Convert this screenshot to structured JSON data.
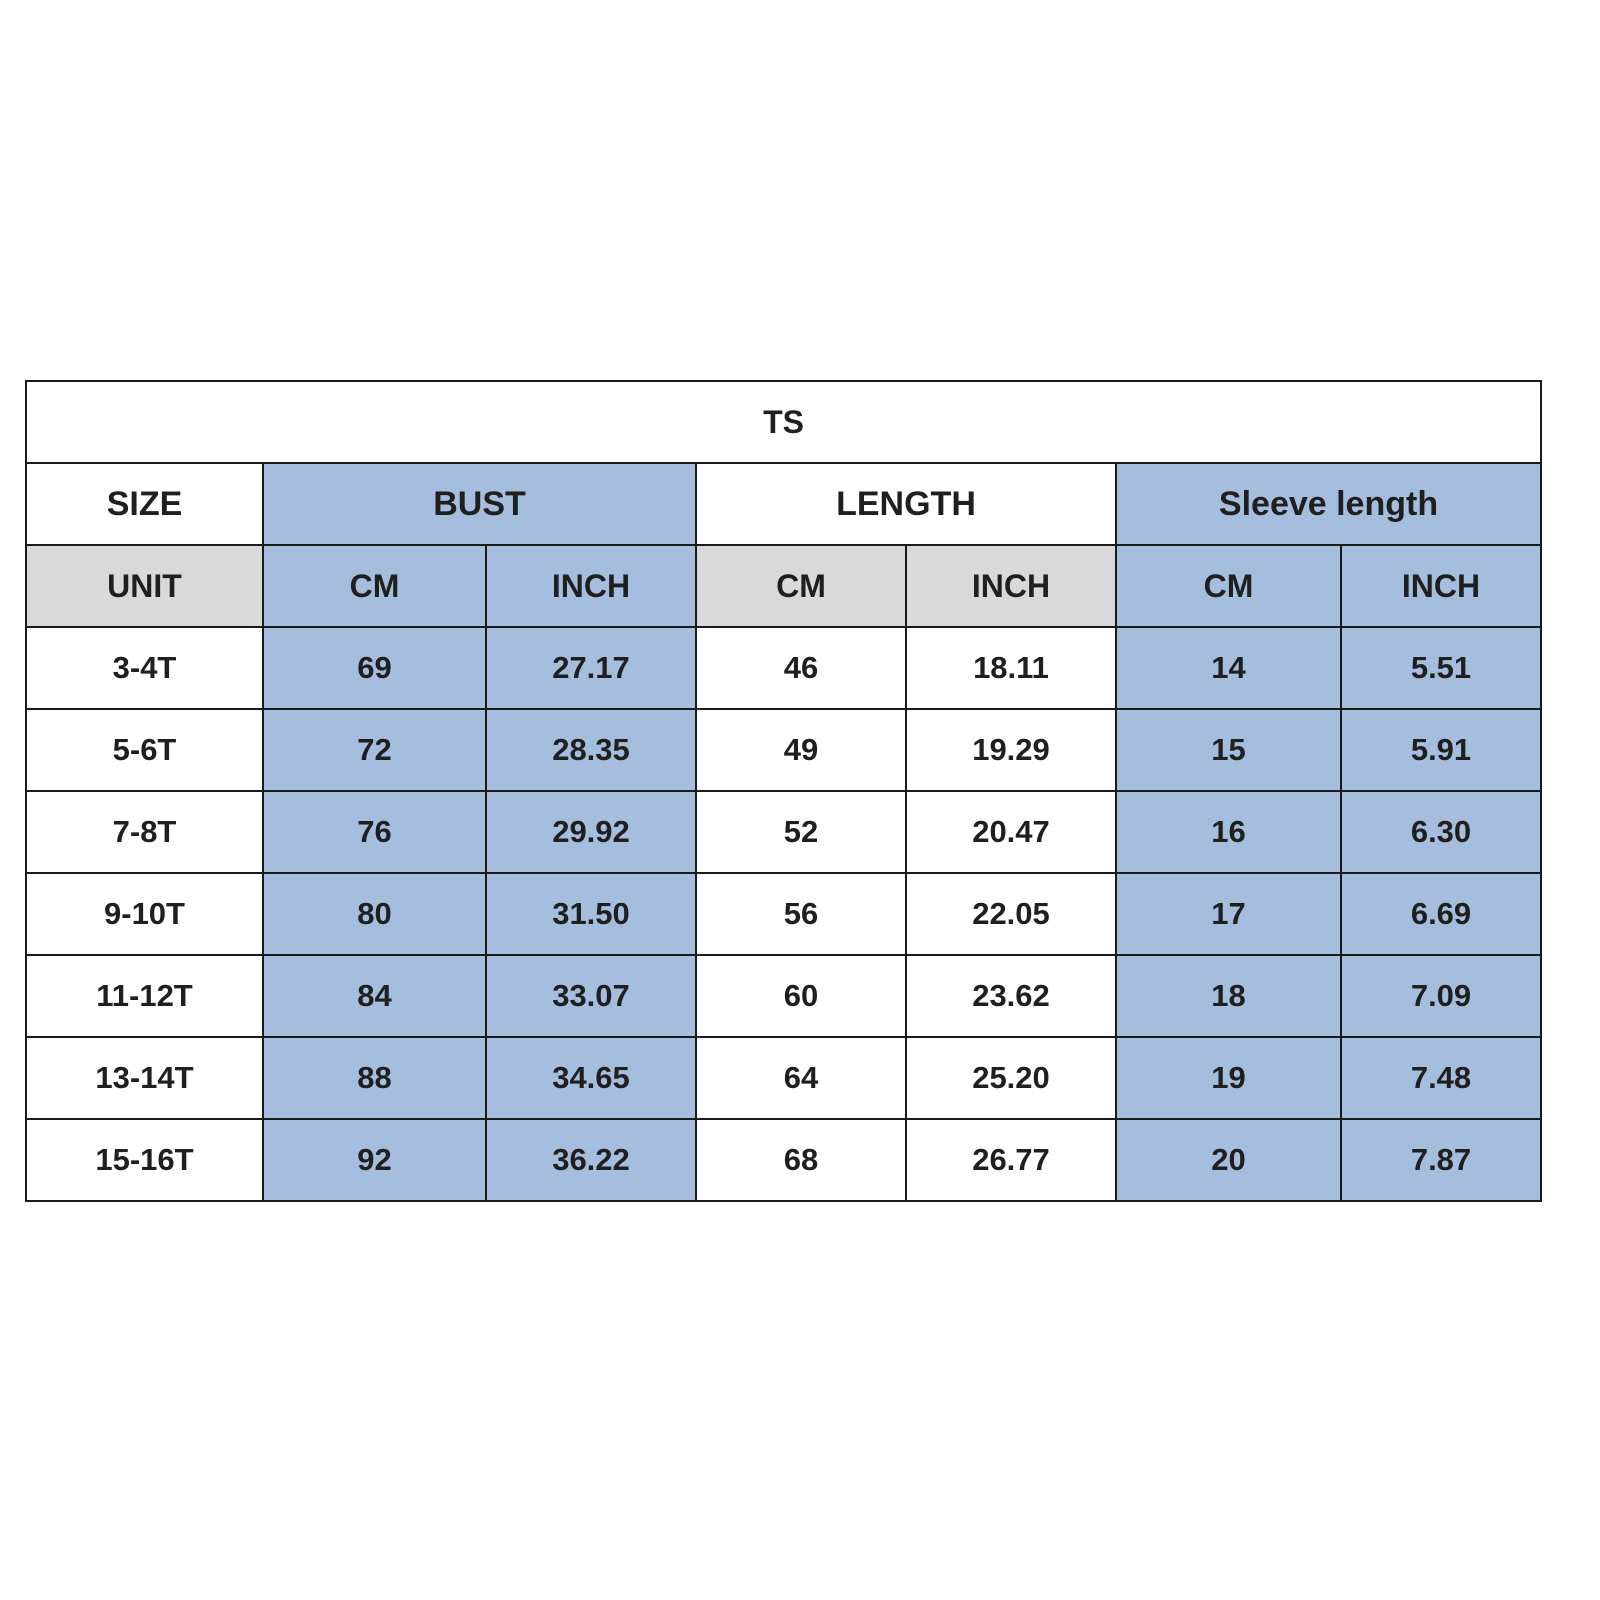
{
  "title": "TS",
  "colors": {
    "blue": "#a6bede",
    "gray": "#d9d9d9",
    "border": "#1a1a1a",
    "text": "#1f1f1f",
    "background": "#ffffff"
  },
  "header": {
    "size": "SIZE",
    "bust": "BUST",
    "length": "LENGTH",
    "sleeve": "Sleeve length",
    "unit": "UNIT",
    "cm": "CM",
    "inch": "INCH"
  },
  "rows": [
    {
      "size": "3-4T",
      "bust_cm": "69",
      "bust_inch": "27.17",
      "length_cm": "46",
      "length_inch": "18.11",
      "sleeve_cm": "14",
      "sleeve_inch": "5.51"
    },
    {
      "size": "5-6T",
      "bust_cm": "72",
      "bust_inch": "28.35",
      "length_cm": "49",
      "length_inch": "19.29",
      "sleeve_cm": "15",
      "sleeve_inch": "5.91"
    },
    {
      "size": "7-8T",
      "bust_cm": "76",
      "bust_inch": "29.92",
      "length_cm": "52",
      "length_inch": "20.47",
      "sleeve_cm": "16",
      "sleeve_inch": "6.30"
    },
    {
      "size": "9-10T",
      "bust_cm": "80",
      "bust_inch": "31.50",
      "length_cm": "56",
      "length_inch": "22.05",
      "sleeve_cm": "17",
      "sleeve_inch": "6.69"
    },
    {
      "size": "11-12T",
      "bust_cm": "84",
      "bust_inch": "33.07",
      "length_cm": "60",
      "length_inch": "23.62",
      "sleeve_cm": "18",
      "sleeve_inch": "7.09"
    },
    {
      "size": "13-14T",
      "bust_cm": "88",
      "bust_inch": "34.65",
      "length_cm": "64",
      "length_inch": "25.20",
      "sleeve_cm": "19",
      "sleeve_inch": "7.48"
    },
    {
      "size": "15-16T",
      "bust_cm": "92",
      "bust_inch": "36.22",
      "length_cm": "68",
      "length_inch": "26.77",
      "sleeve_cm": "20",
      "sleeve_inch": "7.87"
    }
  ],
  "chart_data": {
    "type": "table",
    "title": "TS",
    "columns": [
      "SIZE",
      "BUST CM",
      "BUST INCH",
      "LENGTH CM",
      "LENGTH INCH",
      "Sleeve length CM",
      "Sleeve length INCH"
    ],
    "rows": [
      [
        "3-4T",
        69,
        27.17,
        46,
        18.11,
        14,
        5.51
      ],
      [
        "5-6T",
        72,
        28.35,
        49,
        19.29,
        15,
        5.91
      ],
      [
        "7-8T",
        76,
        29.92,
        52,
        20.47,
        16,
        6.3
      ],
      [
        "9-10T",
        80,
        31.5,
        56,
        22.05,
        17,
        6.69
      ],
      [
        "11-12T",
        84,
        33.07,
        60,
        23.62,
        18,
        7.09
      ],
      [
        "13-14T",
        88,
        34.65,
        64,
        25.2,
        19,
        7.48
      ],
      [
        "15-16T",
        92,
        36.22,
        68,
        26.77,
        20,
        7.87
      ]
    ]
  }
}
